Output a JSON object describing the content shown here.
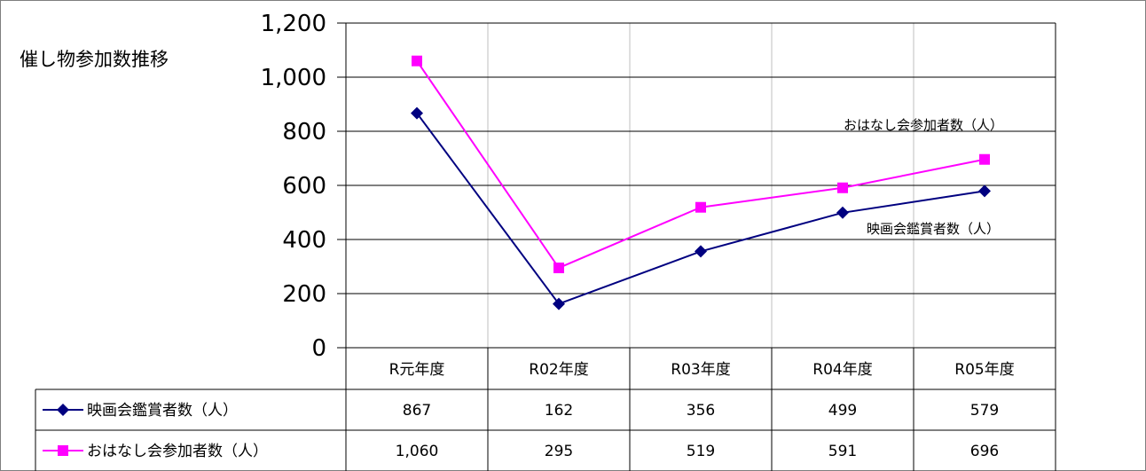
{
  "chart_data": {
    "type": "line",
    "title": "催し物参加数推移",
    "categories": [
      "R元年度",
      "R02年度",
      "R03年度",
      "R04年度",
      "R05年度"
    ],
    "ylim": [
      0,
      1200
    ],
    "ytick_values": [
      0,
      200,
      400,
      600,
      800,
      1000,
      1200
    ],
    "ytick_labels": [
      "0",
      "200",
      "400",
      "600",
      "800",
      "1,000",
      "1,200"
    ],
    "grid": true,
    "legend_placement": "data-table-below",
    "series": [
      {
        "name": "映画会鑑賞者数（人）",
        "values": [
          867,
          162,
          356,
          499,
          579
        ],
        "value_labels": [
          "867",
          "162",
          "356",
          "499",
          "579"
        ],
        "color": "#000080",
        "marker": "diamond"
      },
      {
        "name": "おはなし会参加者数（人）",
        "values": [
          1060,
          295,
          519,
          591,
          696
        ],
        "value_labels": [
          "1,060",
          "295",
          "519",
          "591",
          "696"
        ],
        "color": "#ff00ff",
        "marker": "square"
      }
    ],
    "annotations": [
      "おはなし会参加者数（人）",
      "映画会鑑賞者数（人）"
    ]
  }
}
